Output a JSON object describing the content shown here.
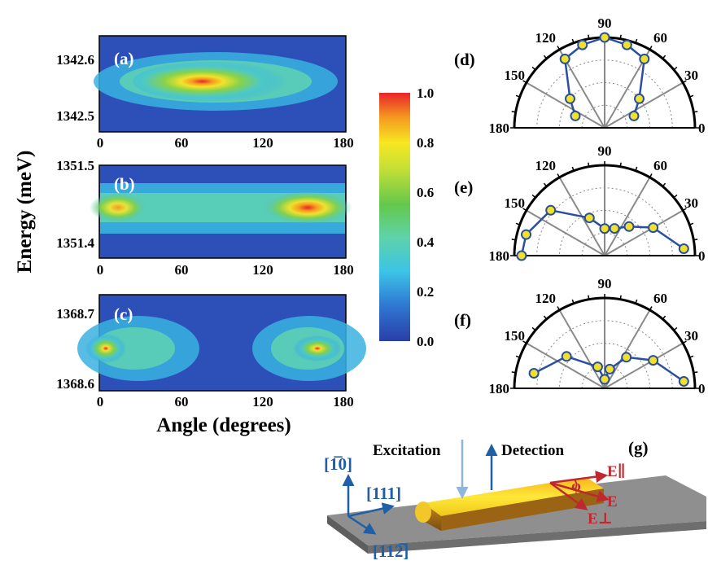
{
  "heatmap_panels": [
    {
      "label": "(a)",
      "y_ticks": [
        "1342.6",
        "1342.5"
      ],
      "x_ticks": [
        "0",
        "60",
        "120",
        "180"
      ]
    },
    {
      "label": "(b)",
      "y_ticks": [
        "1351.5",
        "1351.4"
      ],
      "x_ticks": [
        "0",
        "60",
        "120",
        "180"
      ]
    },
    {
      "label": "(c)",
      "y_ticks": [
        "1368.7",
        "1368.6"
      ],
      "x_ticks": [
        "0",
        "60",
        "120",
        "180"
      ]
    }
  ],
  "y_axis_title": "Energy (meV)",
  "x_axis_title": "Angle (degrees)",
  "colorbar_ticks": [
    "1.0",
    "0.8",
    "0.6",
    "0.4",
    "0.2",
    "0.0"
  ],
  "polar_panels": [
    {
      "label": "(d)",
      "angle_ticks": [
        "90",
        "120",
        "60",
        "150",
        "30",
        "180",
        "0"
      ]
    },
    {
      "label": "(e)",
      "angle_ticks": [
        "90",
        "120",
        "60",
        "150",
        "30",
        "180",
        "0"
      ]
    },
    {
      "label": "(f)",
      "angle_ticks": [
        "90",
        "120",
        "60",
        "150",
        "30",
        "180",
        "0"
      ]
    }
  ],
  "schematic": {
    "label": "(g)",
    "excitation": "Excitation",
    "detection": "Detection",
    "dir_110": "[1̅0]",
    "dir_111": "[111]",
    "dir_112": "[112̅]",
    "phi": "φ",
    "e_par": "E∥",
    "e": "E",
    "e_perp": "E⊥"
  },
  "chart_data": [
    {
      "type": "heatmap",
      "panel": "(a)",
      "xlabel": "Angle (degrees)",
      "ylabel": "Energy (meV)",
      "xlim": [
        0,
        180
      ],
      "ylim": [
        1342.48,
        1342.63
      ],
      "peak": {
        "x": 90,
        "y": 1342.56,
        "value": 1.0
      }
    },
    {
      "type": "heatmap",
      "panel": "(b)",
      "xlabel": "Angle (degrees)",
      "ylabel": "Energy (meV)",
      "xlim": [
        0,
        180
      ],
      "ylim": [
        1351.37,
        1351.5
      ],
      "peak": {
        "x": 155,
        "y": 1351.45,
        "value": 0.9
      }
    },
    {
      "type": "heatmap",
      "panel": "(c)",
      "xlabel": "Angle (degrees)",
      "ylabel": "Energy (meV)",
      "xlim": [
        0,
        180
      ],
      "ylim": [
        1368.6,
        1368.75
      ],
      "peak": {
        "x": 0,
        "y": 1368.65,
        "value": 0.95
      }
    },
    {
      "type": "scatter",
      "panel": "(d)",
      "projection": "polar",
      "theta_range": [
        0,
        180
      ],
      "points": [
        [
          22,
          0.35
        ],
        [
          40,
          0.5
        ],
        [
          60,
          0.88
        ],
        [
          75,
          0.95
        ],
        [
          90,
          1.0
        ],
        [
          105,
          0.95
        ],
        [
          120,
          0.88
        ],
        [
          140,
          0.5
        ],
        [
          158,
          0.35
        ]
      ]
    },
    {
      "type": "scatter",
      "panel": "(e)",
      "projection": "polar",
      "theta_range": [
        0,
        180
      ],
      "points": [
        [
          5,
          0.88
        ],
        [
          30,
          0.62
        ],
        [
          50,
          0.42
        ],
        [
          70,
          0.32
        ],
        [
          90,
          0.3
        ],
        [
          112,
          0.45
        ],
        [
          140,
          0.78
        ],
        [
          165,
          0.9
        ],
        [
          180,
          0.92
        ]
      ]
    },
    {
      "type": "scatter",
      "panel": "(f)",
      "projection": "polar",
      "theta_range": [
        0,
        180
      ],
      "points": [
        [
          5,
          0.88
        ],
        [
          30,
          0.62
        ],
        [
          55,
          0.42
        ],
        [
          75,
          0.22
        ],
        [
          90,
          0.1
        ],
        [
          108,
          0.25
        ],
        [
          140,
          0.55
        ],
        [
          168,
          0.8
        ]
      ]
    }
  ]
}
